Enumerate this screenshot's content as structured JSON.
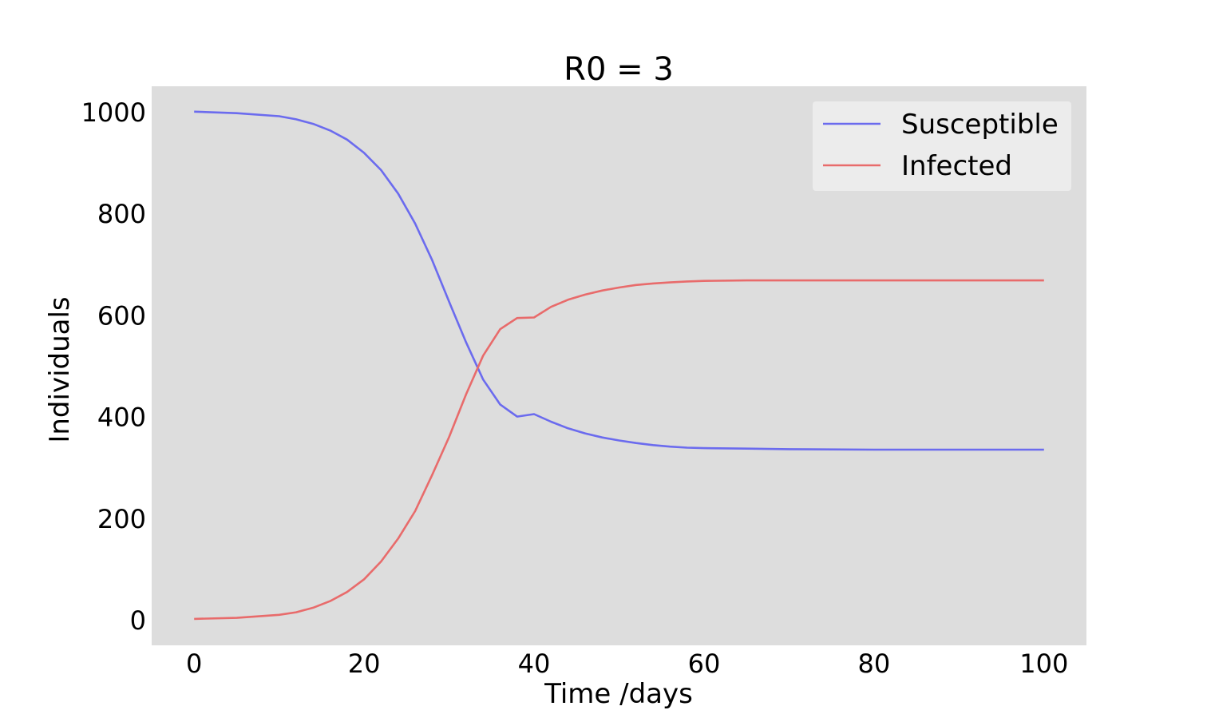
{
  "chart_data": {
    "type": "line",
    "title": "R0 = 3",
    "xlabel": "Time /days",
    "ylabel": "Individuals",
    "xlim": [
      -5,
      105
    ],
    "ylim": [
      -50,
      1050
    ],
    "xticks": [
      0,
      20,
      40,
      60,
      80,
      100
    ],
    "yticks": [
      0,
      200,
      400,
      600,
      800,
      1000
    ],
    "grid": false,
    "legend": "top-right",
    "background_color": "#dddddd",
    "x": [
      0,
      5,
      10,
      12,
      14,
      16,
      18,
      20,
      22,
      24,
      26,
      28,
      30,
      32,
      34,
      36,
      38,
      40,
      42,
      44,
      46,
      48,
      50,
      52,
      54,
      56,
      58,
      60,
      65,
      70,
      80,
      90,
      100
    ],
    "series": [
      {
        "name": "Susceptible",
        "color": "#6b6bee",
        "values": [
          1000,
          997,
          991,
          985,
          976,
          963,
          945,
          919,
          885,
          839,
          780,
          708,
          626,
          546,
          473,
          424,
          400,
          405,
          390,
          377,
          367,
          359,
          353,
          348,
          344,
          341,
          339,
          338,
          337,
          336,
          335,
          335,
          335
        ]
      },
      {
        "name": "Infected",
        "color": "#e86b6b",
        "values": [
          2,
          4,
          10,
          15,
          24,
          37,
          55,
          80,
          115,
          160,
          214,
          285,
          360,
          444,
          520,
          572,
          594,
          595,
          616,
          630,
          640,
          648,
          654,
          659,
          662,
          664,
          666,
          667,
          668,
          668,
          668,
          668,
          668
        ]
      }
    ]
  }
}
